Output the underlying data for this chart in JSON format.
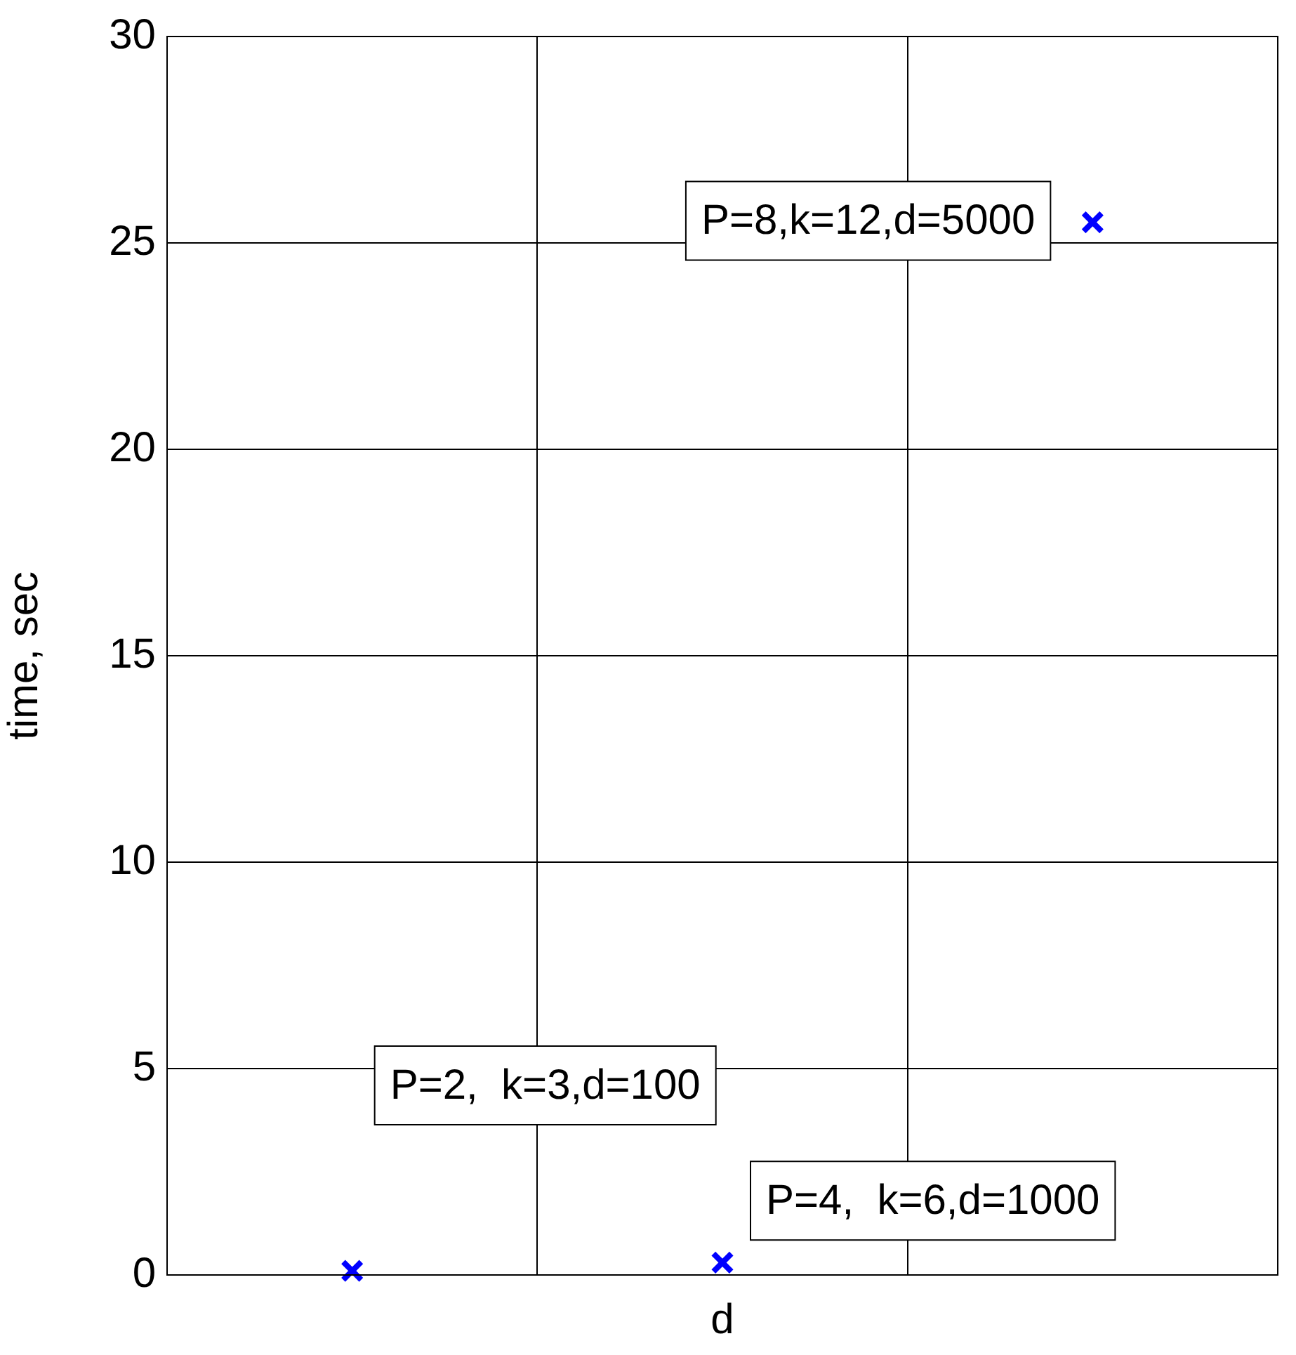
{
  "chart_data": {
    "type": "scatter",
    "xlabel": "d",
    "ylabel": "time, sec",
    "categories": [
      null,
      null,
      null
    ],
    "values": [
      0.1,
      0.3,
      25.5
    ],
    "color": "#0000ff",
    "marker": "cross",
    "ylim": [
      0,
      30
    ],
    "yticks": [
      0,
      5,
      10,
      15,
      20,
      25,
      30
    ],
    "grid": true,
    "tick_labels": "y",
    "legend": false,
    "annotations": [
      "P=2,  k=3,d=100",
      "P=4,  k=6,d=1000",
      "P=8,k=12,d=5000"
    ]
  }
}
